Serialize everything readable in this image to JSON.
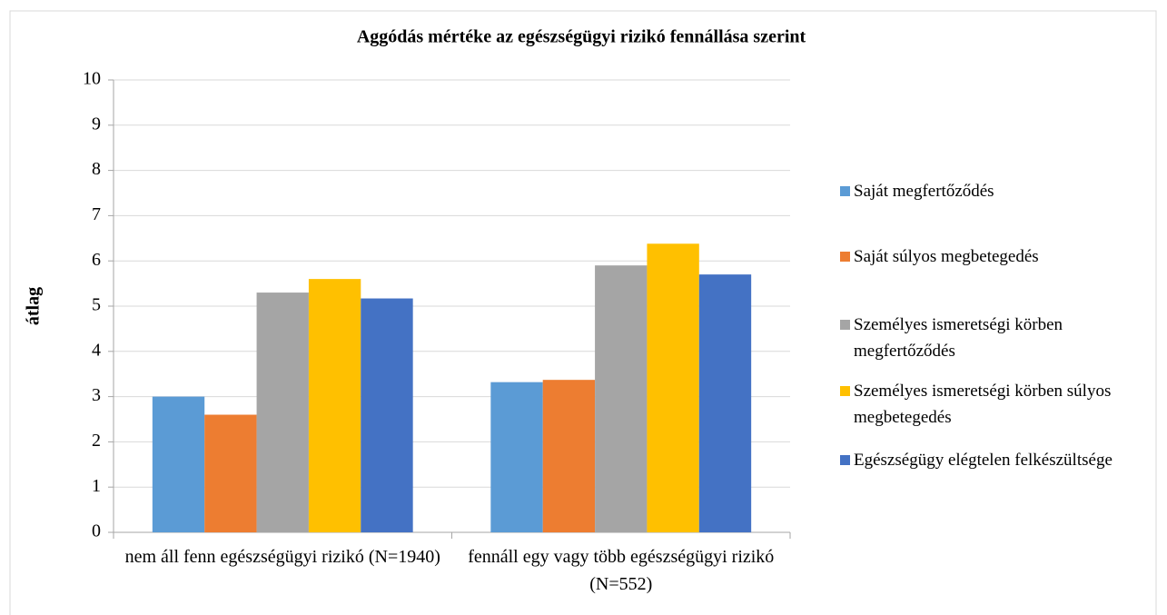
{
  "chart_data": {
    "type": "bar",
    "title": "Aggódás mértéke az egészségügyi rizikó  fennállása szerint",
    "ylabel": "átlag",
    "categories": [
      "nem áll fenn egészségügyi rizikó (N=1940)",
      "fennáll egy vagy több egészségügyi rizikó (N=552)"
    ],
    "series": [
      {
        "name": "Saját megfertőződés",
        "color": "#5b9bd5",
        "values": [
          3.0,
          3.32
        ]
      },
      {
        "name": "Saját súlyos megbetegedés",
        "color": "#ed7d31",
        "values": [
          2.6,
          3.37
        ]
      },
      {
        "name": "Személyes ismeretségi körben megfertőződés",
        "color": "#a5a5a5",
        "values": [
          5.3,
          5.9
        ]
      },
      {
        "name": "Személyes ismeretségi körben súlyos megbetegedés",
        "color": "#ffc000",
        "values": [
          5.6,
          6.38
        ]
      },
      {
        "name": "Egészségügy elégtelen felkészültsége",
        "color": "#4472c4",
        "values": [
          5.17,
          5.7
        ]
      }
    ],
    "ylim": [
      0,
      10
    ],
    "yticks": [
      0,
      1,
      2,
      3,
      4,
      5,
      6,
      7,
      8,
      9,
      10
    ],
    "grid": true,
    "legend": "right"
  }
}
